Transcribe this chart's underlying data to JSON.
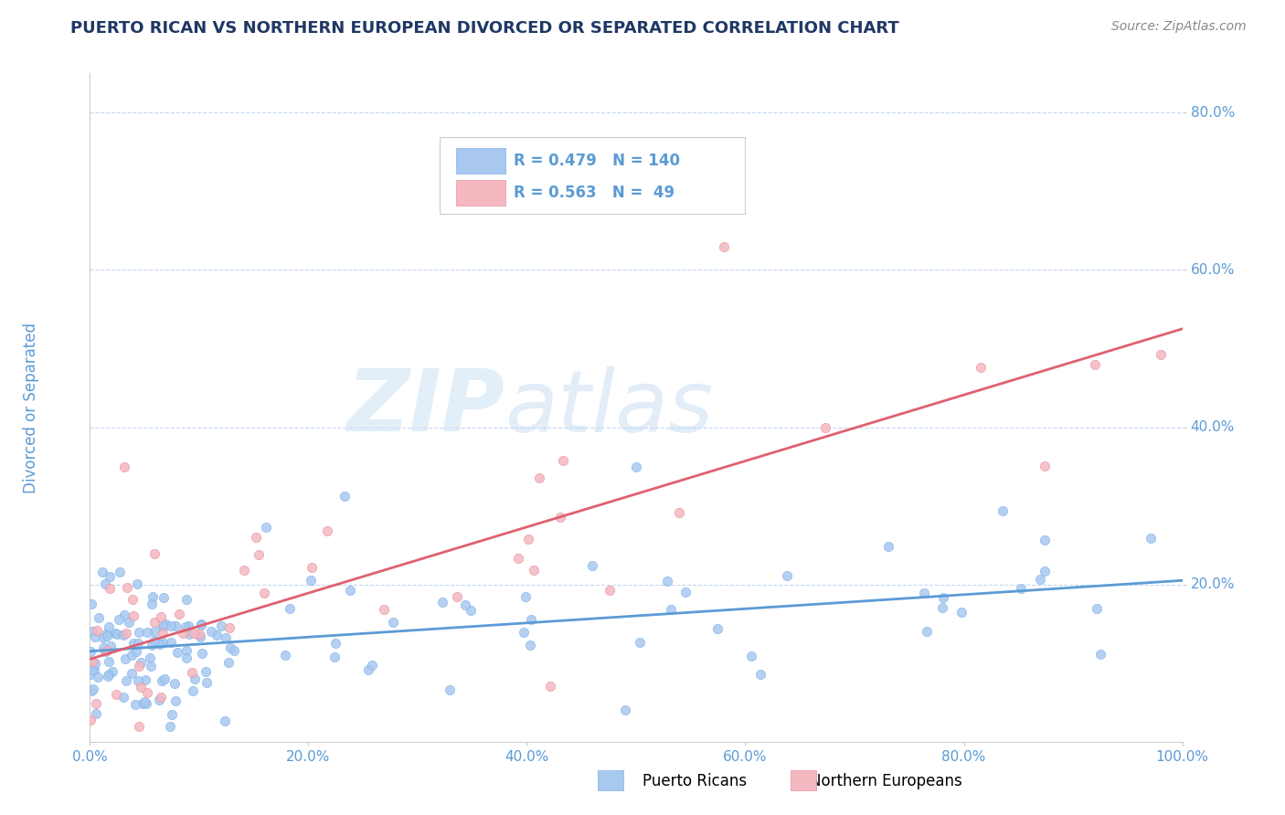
{
  "title": "PUERTO RICAN VS NORTHERN EUROPEAN DIVORCED OR SEPARATED CORRELATION CHART",
  "source": "Source: ZipAtlas.com",
  "ylabel": "Divorced or Separated",
  "xlim": [
    0,
    1
  ],
  "ylim": [
    0,
    0.85
  ],
  "blue_color": "#a8c8f0",
  "blue_color_edge": "#7fb3e8",
  "pink_color": "#f4b8c0",
  "pink_color_edge": "#e890a0",
  "blue_line_color": "#5b9bd5",
  "pink_line_color": "#e06070",
  "blue_R": 0.479,
  "blue_N": 140,
  "pink_R": 0.563,
  "pink_N": 49,
  "legend_label_blue": "Puerto Ricans",
  "legend_label_pink": "Northern Europeans",
  "title_color": "#1f3864",
  "tick_color": "#5b9bd5",
  "grid_color": "#c5d9f0",
  "background_color": "#ffffff",
  "watermark_zip_color": "#c8ddf0",
  "watermark_atlas_color": "#c8ddf0",
  "blue_trend_x0": 0.0,
  "blue_trend_x1": 1.0,
  "blue_trend_y0": 0.115,
  "blue_trend_y1": 0.205,
  "pink_trend_x0": 0.0,
  "pink_trend_x1": 1.0,
  "pink_trend_y0": 0.105,
  "pink_trend_y1": 0.525
}
